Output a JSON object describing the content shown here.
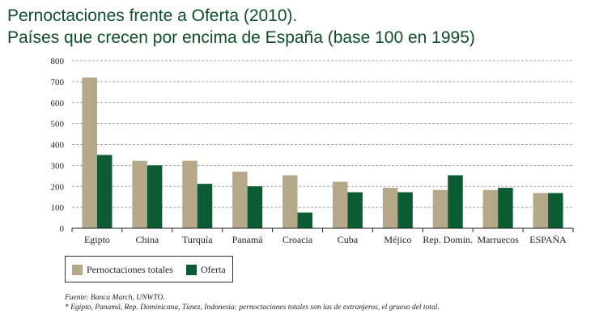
{
  "title": {
    "line1": "Pernoctaciones frente a Oferta (2010).",
    "line2": "Países que crecen por encima de España (base 100 en 1995)"
  },
  "chart_data": {
    "type": "bar",
    "categories": [
      "Egipto",
      "China",
      "Turquía",
      "Panamá",
      "Croacia",
      "Cuba",
      "Méjico",
      "Rep. Domin.",
      "Marruecos",
      "ESPAÑA"
    ],
    "series": [
      {
        "name": "Pernoctaciones totales",
        "color": "#b5a888",
        "values": [
          720,
          322,
          322,
          270,
          253,
          222,
          193,
          183,
          183,
          168
        ]
      },
      {
        "name": "Oferta",
        "color": "#0b5c33",
        "values": [
          350,
          300,
          212,
          200,
          75,
          172,
          172,
          253,
          193,
          168
        ]
      }
    ],
    "ylim": [
      0,
      800
    ],
    "yticks": [
      0,
      100,
      200,
      300,
      400,
      500,
      600,
      700,
      800
    ],
    "grid": "horizontal dashed",
    "legend_position": "bottom-left"
  },
  "notes": {
    "source": "Fuente: Banca March, UNWTO.",
    "footnote": "* Egipto, Panamá, Rep. Dominicana, Túnez, Indonesia: pernoctaciones totales son las de extranjeros, el grueso del total."
  }
}
